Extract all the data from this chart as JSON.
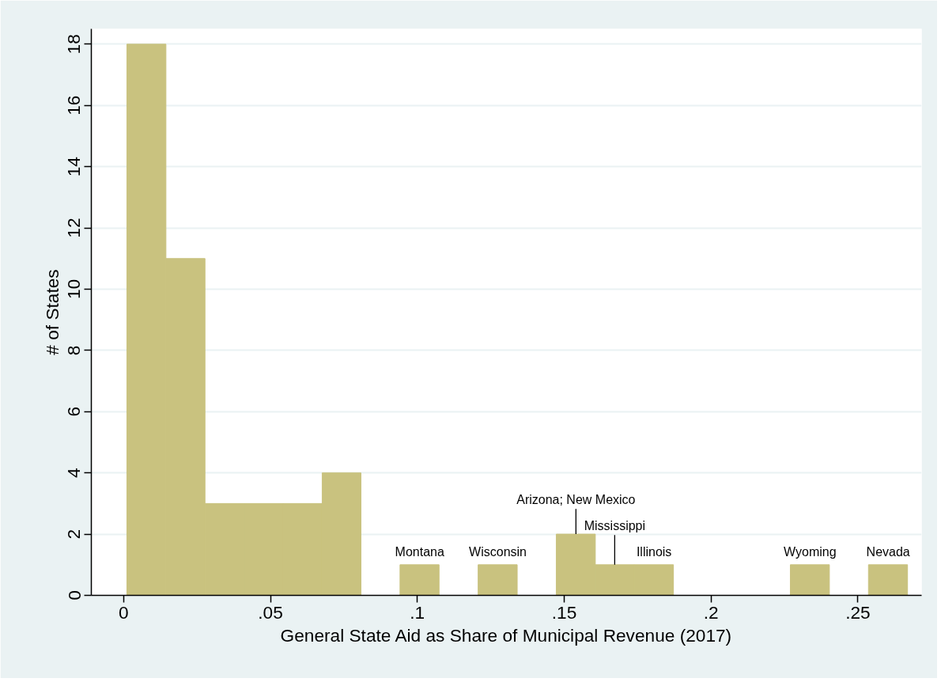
{
  "chart_data": {
    "type": "histogram",
    "xlabel": "General State Aid as Share of Municipal Revenue (2017)",
    "ylabel": "# of States",
    "bins": [
      0.0011,
      0.0144,
      0.0277,
      0.041,
      0.0543,
      0.0676,
      0.0808,
      0.0941,
      0.1074,
      0.1207,
      0.134,
      0.1473,
      0.1606,
      0.1739,
      0.1872,
      0.2005,
      0.2138,
      0.227,
      0.2403,
      0.2536,
      0.2669
    ],
    "values": [
      18,
      11,
      3,
      3,
      3,
      4,
      0,
      1,
      0,
      1,
      0,
      2,
      1,
      1,
      0,
      0,
      0,
      1,
      0,
      1
    ],
    "color": "#c9c27f",
    "xlim": [
      -0.011,
      0.2717
    ],
    "ylim": [
      0,
      18.5
    ],
    "xticks": [
      0,
      {
        "value": 0.05,
        "label": ".05"
      },
      {
        "value": 0.1,
        "label": ".1"
      },
      {
        "value": 0.15,
        "label": ".15"
      },
      {
        "value": 0.2,
        "label": ".2"
      },
      {
        "value": 0.25,
        "label": ".25"
      }
    ],
    "yticks": [
      0,
      2,
      4,
      6,
      8,
      10,
      12,
      14,
      16,
      18
    ],
    "grid": "y",
    "annotations": [
      {
        "text": "Montana",
        "x": 0.1008,
        "y": 1
      },
      {
        "text": "Wisconsin",
        "x": 0.1274,
        "y": 1
      },
      {
        "text": "Arizona; New Mexico",
        "x": 0.154,
        "y": 2
      },
      {
        "text": "Mississippi",
        "x": 0.1672,
        "y": 1
      },
      {
        "text": "Illinois",
        "x": 0.1806,
        "y": 1
      },
      {
        "text": "Wyoming",
        "x": 0.2337,
        "y": 1
      },
      {
        "text": "Nevada",
        "x": 0.2603,
        "y": 1
      }
    ]
  }
}
